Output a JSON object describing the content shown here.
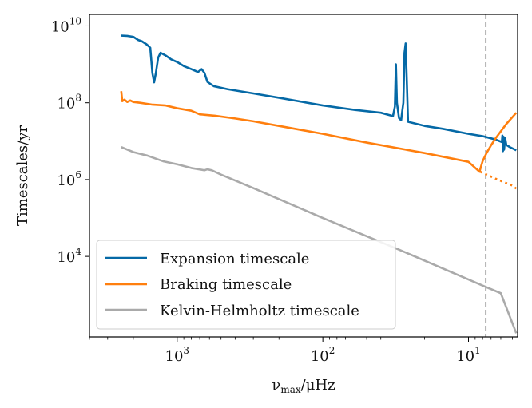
{
  "chart_data": {
    "type": "line",
    "x_scale": "log",
    "y_scale": "log",
    "x_inverted": true,
    "xlabel": "ν_max/μHz",
    "xlabel_parts": {
      "nu": "ν",
      "sub": "max",
      "rest": "/μHz"
    },
    "ylabel": "Timescales/yr",
    "xlim": [
      4000,
      4.6
    ],
    "ylim": [
      80,
      20000000000
    ],
    "x_ticks": [
      {
        "value": 1000,
        "base": "10",
        "exp": "3"
      },
      {
        "value": 100,
        "base": "10",
        "exp": "2"
      },
      {
        "value": 10,
        "base": "10",
        "exp": "1"
      }
    ],
    "y_ticks": [
      {
        "value": 10000,
        "base": "10",
        "exp": "4"
      },
      {
        "value": 1000000,
        "base": "10",
        "exp": "6"
      },
      {
        "value": 100000000,
        "base": "10",
        "exp": "8"
      },
      {
        "value": 10000000000,
        "base": "10",
        "exp": "10"
      }
    ],
    "vline": {
      "x": 7.6,
      "style": "dashed",
      "color": "#808080"
    },
    "series": [
      {
        "name": "Expansion timescale",
        "color": "#0569a6",
        "style": "solid",
        "points": [
          [
            2420,
            5600000000.0
          ],
          [
            2200,
            5500000000.0
          ],
          [
            2000,
            5200000000.0
          ],
          [
            1850,
            4300000000.0
          ],
          [
            1750,
            4000000000.0
          ],
          [
            1620,
            3300000000.0
          ],
          [
            1530,
            2700000000.0
          ],
          [
            1480,
            600000000.0
          ],
          [
            1440,
            340000000.0
          ],
          [
            1400,
            600000000.0
          ],
          [
            1350,
            1500000000.0
          ],
          [
            1300,
            2000000000.0
          ],
          [
            1200,
            1700000000.0
          ],
          [
            1100,
            1350000000.0
          ],
          [
            1000,
            1150000000.0
          ],
          [
            900,
            900000000.0
          ],
          [
            800,
            750000000.0
          ],
          [
            720,
            630000000.0
          ],
          [
            680,
            750000000.0
          ],
          [
            650,
            600000000.0
          ],
          [
            620,
            350000000.0
          ],
          [
            560,
            270000000.0
          ],
          [
            450,
            225000000.0
          ],
          [
            300,
            175000000.0
          ],
          [
            200,
            135000000.0
          ],
          [
            100,
            85000000.0
          ],
          [
            60,
            65000000.0
          ],
          [
            40,
            55000000.0
          ],
          [
            33,
            45000000.0
          ],
          [
            32,
            80000000.0
          ],
          [
            31.5,
            1000000000.0
          ],
          [
            31,
            100000000.0
          ],
          [
            30,
            40000000.0
          ],
          [
            29,
            35000000.0
          ],
          [
            28.5,
            60000000.0
          ],
          [
            28,
            100000000.0
          ],
          [
            27.5,
            2000000000.0
          ],
          [
            27,
            3500000000.0
          ],
          [
            26,
            32000000.0
          ],
          [
            20,
            25000000.0
          ],
          [
            15,
            21000000.0
          ],
          [
            10,
            15500000.0
          ],
          [
            8,
            13500000.0
          ],
          [
            6.5,
            11000000.0
          ],
          [
            5.9,
            9500000.0
          ],
          [
            5.85,
            14000000.0
          ],
          [
            5.8,
            5500000.0
          ],
          [
            5.75,
            13000000.0
          ],
          [
            5.7,
            6000000.0
          ],
          [
            5.6,
            12000000.0
          ],
          [
            5.5,
            8000000.0
          ],
          [
            5.2,
            7000000.0
          ],
          [
            4.7,
            5800000.0
          ]
        ]
      },
      {
        "name": "Braking timescale",
        "color": "#ff7f0e",
        "style": "solid",
        "points": [
          [
            2420,
            200000000.0
          ],
          [
            2380,
            110000000.0
          ],
          [
            2300,
            120000000.0
          ],
          [
            2200,
            105000000.0
          ],
          [
            2100,
            115000000.0
          ],
          [
            2000,
            105000000.0
          ],
          [
            1800,
            100000000.0
          ],
          [
            1500,
            90000000.0
          ],
          [
            1200,
            85000000.0
          ],
          [
            1000,
            72000000.0
          ],
          [
            800,
            62000000.0
          ],
          [
            700,
            50000000.0
          ],
          [
            550,
            46000000.0
          ],
          [
            400,
            39000000.0
          ],
          [
            300,
            33000000.0
          ],
          [
            200,
            25000000.0
          ],
          [
            100,
            15500000.0
          ],
          [
            50,
            9200000.0
          ],
          [
            20,
            4900000.0
          ],
          [
            10,
            2900000.0
          ],
          [
            8.4,
            1600000.0
          ],
          [
            8.2,
            2200000.0
          ],
          [
            8.0,
            3000000.0
          ],
          [
            7.5,
            5000000.0
          ],
          [
            7.0,
            7800000.0
          ],
          [
            6.5,
            12000000.0
          ],
          [
            6.0,
            18000000.0
          ],
          [
            5.5,
            28000000.0
          ],
          [
            5.0,
            42000000.0
          ],
          [
            4.7,
            55000000.0
          ]
        ]
      },
      {
        "name": "Braking timescale (continued)",
        "color": "#ff7f0e",
        "style": "dotted",
        "legend": false,
        "points": [
          [
            8.3,
            1600000.0
          ],
          [
            6.5,
            1050000.0
          ],
          [
            5.0,
            700000.0
          ],
          [
            4.7,
            580000.0
          ]
        ]
      },
      {
        "name": "Kelvin-Helmholtz timescale",
        "color": "#aaaaaa",
        "style": "solid",
        "points": [
          [
            2420,
            7000000.0
          ],
          [
            2000,
            5200000.0
          ],
          [
            1600,
            4200000.0
          ],
          [
            1250,
            3000000.0
          ],
          [
            1000,
            2500000.0
          ],
          [
            800,
            2000000.0
          ],
          [
            650,
            1750000.0
          ],
          [
            620,
            1850000.0
          ],
          [
            580,
            1750000.0
          ],
          [
            500,
            1350000.0
          ],
          [
            300,
            600000.0
          ],
          [
            100,
            100000.0
          ],
          [
            30,
            15000.0
          ],
          [
            10,
            2500.0
          ],
          [
            7.6,
            1600.0
          ],
          [
            6,
            1100.0
          ],
          [
            4.7,
            100.0
          ]
        ]
      }
    ],
    "legend": {
      "location": "lower-left",
      "entries": [
        {
          "name": "Expansion timescale",
          "color": "#0569a6"
        },
        {
          "name": "Braking timescale",
          "color": "#ff7f0e"
        },
        {
          "name": "Kelvin-Helmholtz timescale",
          "color": "#aaaaaa"
        }
      ]
    }
  }
}
